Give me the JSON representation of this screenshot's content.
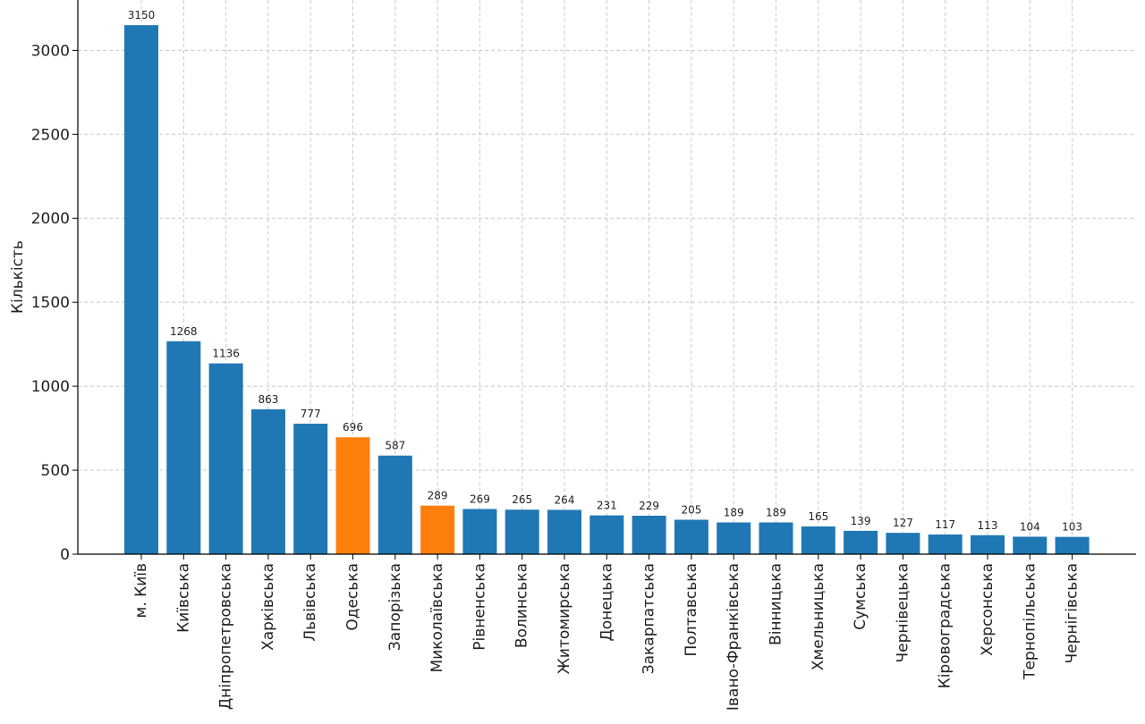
{
  "chart_data": {
    "type": "bar",
    "ylabel": "Кількість",
    "xlabel": "",
    "ylim": [
      0,
      3300
    ],
    "yticks": [
      0,
      500,
      1000,
      1500,
      2000,
      2500,
      3000
    ],
    "grid": true,
    "categories": [
      "м. Київ",
      "Київська",
      "Дніпропетровська",
      "Харківська",
      "Львівська",
      "Одеська",
      "Запорізька",
      "Миколаївська",
      "Рівненська",
      "Волинська",
      "Житомирська",
      "Донецька",
      "Закарпатська",
      "Полтавська",
      "Івано-Франківська",
      "Вінницька",
      "Хмельницька",
      "Сумська",
      "Чернівецька",
      "Кіровоградська",
      "Херсонська",
      "Тернопільська",
      "Чернігівська"
    ],
    "values": [
      3150,
      1268,
      1136,
      863,
      777,
      696,
      587,
      289,
      269,
      265,
      264,
      231,
      229,
      205,
      189,
      189,
      165,
      139,
      127,
      117,
      113,
      104,
      103
    ],
    "colors": {
      "default": "#1f77b4",
      "highlight": "#ff7f0e"
    },
    "highlighted": [
      "Одеська",
      "Миколаївська"
    ]
  }
}
